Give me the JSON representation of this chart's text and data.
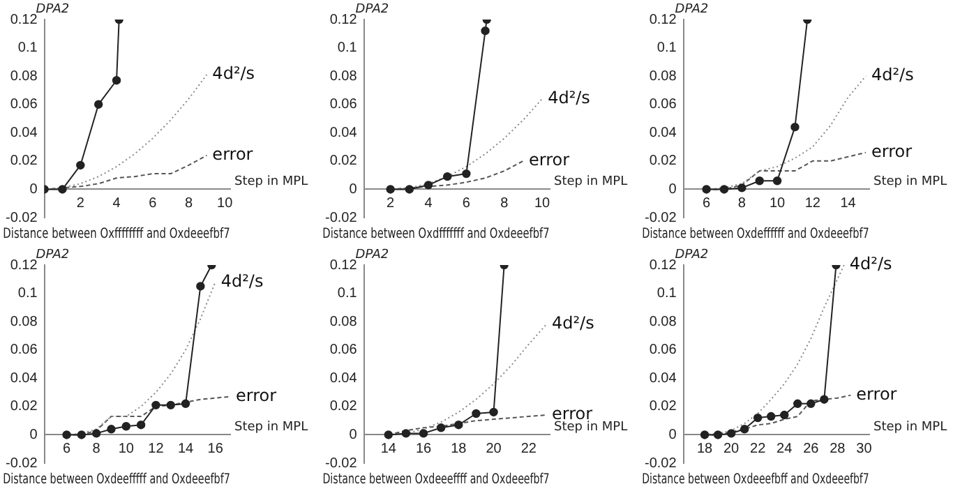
{
  "chart_data": [
    {
      "type": "line",
      "title": "Distance between Oxffffffff and Oxdeeefbf7",
      "xlabel": "Step in MPL",
      "ylabel": "DPA2",
      "xlim": [
        0,
        10.3
      ],
      "xticks": [
        2,
        4,
        6,
        8,
        10
      ],
      "ylim": [
        -0.02,
        0.12
      ],
      "yticks": [
        -0.02,
        0,
        0.02,
        0.04,
        0.06,
        0.08,
        0.1,
        0.12
      ],
      "series": [
        {
          "color": "#222222",
          "marker": "circle",
          "line_style": "solid",
          "x": [
            0,
            1,
            2,
            3,
            4,
            4.14
          ],
          "values": [
            0,
            0,
            0.017,
            0.06,
            0.077,
            0.12
          ]
        },
        {
          "name": "4d²/s",
          "color": "#888888",
          "marker": "none",
          "line_style": "dotted",
          "x": [
            0,
            1,
            2,
            3,
            4,
            5,
            6,
            7,
            8,
            9
          ],
          "values": [
            0,
            0.001,
            0.004,
            0.009,
            0.016,
            0.025,
            0.036,
            0.049,
            0.064,
            0.081
          ]
        },
        {
          "name": "error",
          "color": "#555555",
          "marker": "none",
          "line_style": "dashed",
          "x": [
            0,
            1,
            2,
            3,
            4,
            5,
            6,
            7,
            8,
            9
          ],
          "values": [
            0,
            0.001,
            0.002,
            0.004,
            0.008,
            0.009,
            0.011,
            0.011,
            0.017,
            0.024
          ]
        }
      ]
    },
    {
      "type": "line",
      "title": "Distance between Oxdfffffff and Oxdeeefbf7",
      "xlabel": "Step in MPL",
      "ylabel": "DPA2",
      "xlim": [
        0.6,
        10.4
      ],
      "xticks": [
        2,
        4,
        6,
        8,
        10
      ],
      "ylim": [
        -0.02,
        0.12
      ],
      "yticks": [
        -0.02,
        0,
        0.02,
        0.04,
        0.06,
        0.08,
        0.1,
        0.12
      ],
      "series": [
        {
          "color": "#222222",
          "marker": "circle",
          "line_style": "solid",
          "x": [
            2,
            3,
            4,
            5,
            6,
            7,
            7.08
          ],
          "values": [
            0,
            0,
            0.003,
            0.009,
            0.011,
            0.112,
            0.12
          ]
        },
        {
          "name": "4d²/s",
          "color": "#888888",
          "marker": "none",
          "line_style": "dotted",
          "x": [
            2,
            3,
            4,
            5,
            6,
            7,
            8,
            9,
            10
          ],
          "values": [
            0,
            0.001,
            0.004,
            0.009,
            0.016,
            0.025,
            0.036,
            0.049,
            0.064
          ]
        },
        {
          "name": "error",
          "color": "#555555",
          "marker": "none",
          "line_style": "dashed",
          "x": [
            2,
            3,
            4,
            5,
            6,
            7,
            8,
            9
          ],
          "values": [
            0,
            0.001,
            0.002,
            0.003,
            0.005,
            0.008,
            0.013,
            0.02
          ]
        }
      ]
    },
    {
      "type": "line",
      "title": "Distance between Oxdeffffff and Oxdeeefbf7",
      "xlabel": "Step in MPL",
      "ylabel": "DPA2",
      "xlim": [
        4.7,
        15.2
      ],
      "xticks": [
        6,
        8,
        10,
        12,
        14
      ],
      "ylim": [
        -0.02,
        0.12
      ],
      "yticks": [
        -0.02,
        0,
        0.02,
        0.04,
        0.06,
        0.08,
        0.1,
        0.12
      ],
      "series": [
        {
          "color": "#222222",
          "marker": "circle",
          "line_style": "solid",
          "x": [
            6,
            7,
            8,
            9,
            10,
            11,
            11.7
          ],
          "values": [
            0,
            0,
            0.001,
            0.006,
            0.006,
            0.044,
            0.12
          ]
        },
        {
          "name": "4d²/s",
          "color": "#888888",
          "marker": "none",
          "line_style": "dotted",
          "x": [
            6,
            7,
            8,
            9,
            10,
            11,
            12,
            13,
            14,
            15
          ],
          "values": [
            0,
            0.001,
            0.004,
            0.013,
            0.016,
            0.022,
            0.03,
            0.045,
            0.065,
            0.08
          ]
        },
        {
          "name": "error",
          "color": "#555555",
          "marker": "none",
          "line_style": "dashed",
          "x": [
            6,
            7,
            8,
            9,
            10,
            11,
            12,
            13,
            14,
            15
          ],
          "values": [
            0,
            0,
            0.003,
            0.013,
            0.013,
            0.013,
            0.02,
            0.02,
            0.023,
            0.026
          ]
        }
      ]
    },
    {
      "type": "line",
      "title": "Distance between Oxdeefffff and Oxdeeefbf7",
      "xlabel": "Step in MPL",
      "ylabel": "DPA2",
      "xlim": [
        4.5,
        17
      ],
      "xticks": [
        6,
        8,
        10,
        12,
        14,
        16
      ],
      "ylim": [
        -0.02,
        0.12
      ],
      "yticks": [
        -0.02,
        0,
        0.02,
        0.04,
        0.06,
        0.08,
        0.1,
        0.12
      ],
      "series": [
        {
          "color": "#222222",
          "marker": "circle",
          "line_style": "solid",
          "x": [
            6,
            7,
            8,
            9,
            10,
            11,
            12,
            13,
            14,
            15,
            15.75
          ],
          "values": [
            0,
            0,
            0.001,
            0.004,
            0.006,
            0.007,
            0.021,
            0.021,
            0.022,
            0.105,
            0.12
          ]
        },
        {
          "name": "4d²/s",
          "color": "#888888",
          "marker": "none",
          "line_style": "dotted",
          "x": [
            6,
            7,
            8,
            9,
            10,
            11,
            12,
            13,
            14,
            15,
            16
          ],
          "values": [
            0,
            0.001,
            0.004,
            0.013,
            0.013,
            0.02,
            0.03,
            0.043,
            0.06,
            0.082,
            0.108
          ]
        },
        {
          "name": "error",
          "color": "#555555",
          "marker": "none",
          "line_style": "dashed",
          "x": [
            6,
            7,
            8,
            9,
            10,
            11,
            12,
            13,
            14,
            15,
            16,
            17
          ],
          "values": [
            0,
            0,
            0.003,
            0.013,
            0.013,
            0.013,
            0.02,
            0.021,
            0.023,
            0.025,
            0.026,
            0.027
          ]
        }
      ]
    },
    {
      "type": "line",
      "title": "Distance between Oxdeeeffff and Oxdeeefbf7",
      "xlabel": "Step in MPL",
      "ylabel": "DPA2",
      "xlim": [
        12.6,
        23.2
      ],
      "xticks": [
        14,
        16,
        18,
        20,
        22
      ],
      "ylim": [
        -0.02,
        0.12
      ],
      "yticks": [
        -0.02,
        0,
        0.02,
        0.04,
        0.06,
        0.08,
        0.1,
        0.12
      ],
      "series": [
        {
          "color": "#222222",
          "marker": "circle",
          "line_style": "solid",
          "x": [
            14,
            15,
            16,
            17,
            18,
            19,
            20,
            20.6
          ],
          "values": [
            0,
            0.001,
            0.001,
            0.005,
            0.007,
            0.015,
            0.016,
            0.12
          ]
        },
        {
          "name": "4d²/s",
          "color": "#888888",
          "marker": "none",
          "line_style": "dotted",
          "x": [
            14,
            15,
            16,
            17,
            18,
            19,
            20,
            21,
            22,
            23
          ],
          "values": [
            0,
            0.001,
            0.004,
            0.009,
            0.016,
            0.025,
            0.036,
            0.049,
            0.064,
            0.078
          ]
        },
        {
          "name": "error",
          "color": "#555555",
          "marker": "none",
          "line_style": "dashed",
          "x": [
            14,
            15,
            16,
            17,
            18,
            19,
            20,
            21,
            22,
            23
          ],
          "values": [
            0,
            0.003,
            0.005,
            0.006,
            0.008,
            0.01,
            0.011,
            0.012,
            0.013,
            0.014
          ]
        }
      ]
    },
    {
      "type": "line",
      "title": "Distance between Oxdeeefbff and Oxdeeefbf7",
      "xlabel": "Step in MPL",
      "ylabel": "DPA2",
      "xlim": [
        16.4,
        30.4
      ],
      "xticks": [
        18,
        20,
        22,
        24,
        26,
        28,
        30
      ],
      "ylim": [
        -0.02,
        0.12
      ],
      "yticks": [
        -0.02,
        0,
        0.02,
        0.04,
        0.06,
        0.08,
        0.1,
        0.12
      ],
      "series": [
        {
          "color": "#222222",
          "marker": "circle",
          "line_style": "solid",
          "x": [
            18,
            19,
            20,
            21,
            22,
            23,
            24,
            25,
            26,
            27,
            27.9
          ],
          "values": [
            0,
            0,
            0.001,
            0.004,
            0.012,
            0.013,
            0.014,
            0.022,
            0.022,
            0.025,
            0.12
          ]
        },
        {
          "name": "4d²/s",
          "color": "#888888",
          "marker": "none",
          "line_style": "dotted",
          "x": [
            18,
            19,
            20,
            21,
            22,
            23,
            24,
            25,
            26,
            27,
            28,
            28.5
          ],
          "values": [
            0,
            0.001,
            0.003,
            0.008,
            0.015,
            0.025,
            0.036,
            0.05,
            0.068,
            0.09,
            0.11,
            0.12
          ]
        },
        {
          "name": "error",
          "color": "#555555",
          "marker": "none",
          "line_style": "dashed",
          "x": [
            18,
            19,
            20,
            21,
            22,
            23,
            24,
            25,
            26,
            27,
            28,
            29
          ],
          "values": [
            0,
            0,
            0.002,
            0.004,
            0.007,
            0.008,
            0.011,
            0.013,
            0.024,
            0.025,
            0.026,
            0.028
          ]
        }
      ]
    }
  ]
}
